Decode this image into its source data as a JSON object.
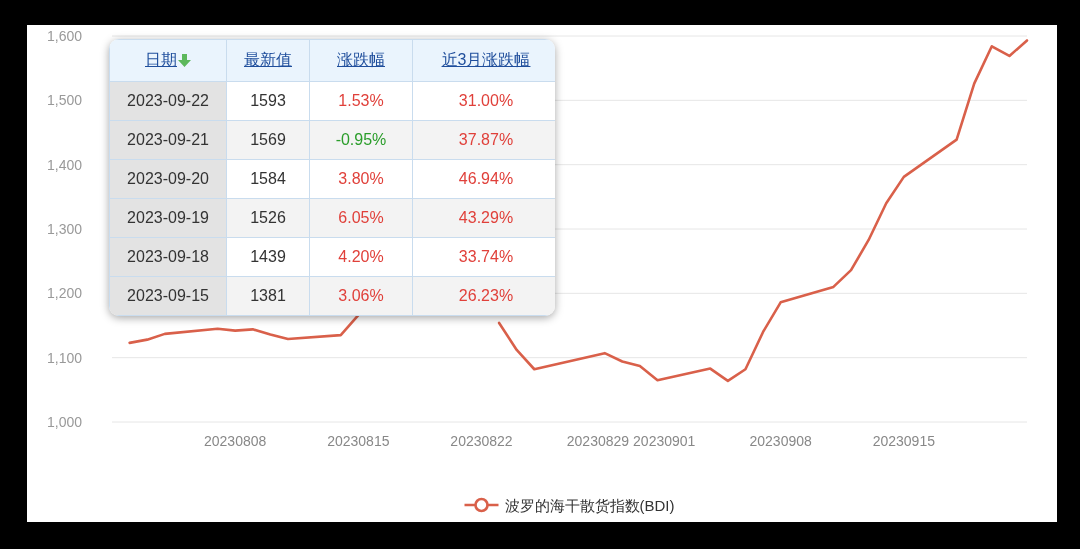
{
  "chart_data": [
    {
      "type": "line",
      "x": [
        "2023-08-02",
        "2023-08-03",
        "2023-08-04",
        "2023-08-07",
        "2023-08-08",
        "2023-08-09",
        "2023-08-10",
        "2023-08-11",
        "2023-08-14",
        "2023-08-15",
        "2023-08-23",
        "2023-08-24",
        "2023-08-25",
        "2023-08-29",
        "2023-08-30",
        "2023-08-31",
        "2023-09-01",
        "2023-09-04",
        "2023-09-05",
        "2023-09-06",
        "2023-09-07",
        "2023-09-08",
        "2023-09-11",
        "2023-09-12",
        "2023-09-13",
        "2023-09-14",
        "2023-09-15",
        "2023-09-18",
        "2023-09-19",
        "2023-09-20",
        "2023-09-21",
        "2023-09-22"
      ],
      "series": [
        {
          "name": "波罗的海干散货指数(BDI)",
          "color": "#d9604a",
          "values": [
            1123,
            1128,
            1137,
            1145,
            1142,
            1144,
            1136,
            1129,
            1135,
            1166,
            1154,
            1112,
            1082,
            1107,
            1094,
            1087,
            1065,
            1083,
            1064,
            1082,
            1140,
            1186,
            1210,
            1236,
            1283,
            1340,
            1381,
            1439,
            1526,
            1584,
            1569,
            1593
          ]
        }
      ],
      "xlim": [
        "2023-08-01",
        "2023-09-22"
      ],
      "xticks": [
        {
          "value": "2023-08-08",
          "label": "20230808"
        },
        {
          "value": "2023-08-15",
          "label": "20230815"
        },
        {
          "value": "2023-08-22",
          "label": "20230822"
        },
        {
          "value": "2023-08-29",
          "label": "20230829"
        },
        {
          "value": "2023-09-01",
          "label": "20230901"
        },
        {
          "value": "2023-09-08",
          "label": "20230908"
        },
        {
          "value": "2023-09-15",
          "label": "20230915"
        }
      ],
      "ylim": [
        1000,
        1600
      ],
      "yticks": [
        {
          "value": 1000,
          "label": "1,000"
        },
        {
          "value": 1100,
          "label": "1,100"
        },
        {
          "value": 1200,
          "label": "1,200"
        },
        {
          "value": 1300,
          "label": "1,300"
        },
        {
          "value": 1400,
          "label": "1,400"
        },
        {
          "value": 1500,
          "label": "1,500"
        },
        {
          "value": 1600,
          "label": "1,600"
        }
      ],
      "grid": "y",
      "legend": "bottom"
    },
    {
      "type": "other",
      "categories": [
        "日期",
        "最新值",
        "涨跌幅",
        "近3月涨跌幅"
      ],
      "cell_labels": [
        [
          "2023-09-22",
          "1593",
          "1.53%",
          "31.00%"
        ],
        [
          "2023-09-21",
          "1569",
          "-0.95%",
          "37.87%"
        ],
        [
          "2023-09-20",
          "1584",
          "3.80%",
          "46.94%"
        ],
        [
          "2023-09-19",
          "1526",
          "6.05%",
          "43.29%"
        ],
        [
          "2023-09-18",
          "1439",
          "4.20%",
          "33.74%"
        ],
        [
          "2023-09-15",
          "1381",
          "3.06%",
          "26.23%"
        ]
      ],
      "colors": [
        [
          "#333333",
          "#333333",
          "#e0403a",
          "#e0403a"
        ],
        [
          "#333333",
          "#333333",
          "#2a9d2a",
          "#e0403a"
        ],
        [
          "#333333",
          "#333333",
          "#e0403a",
          "#e0403a"
        ],
        [
          "#333333",
          "#333333",
          "#e0403a",
          "#e0403a"
        ],
        [
          "#333333",
          "#333333",
          "#e0403a",
          "#e0403a"
        ],
        [
          "#333333",
          "#333333",
          "#e0403a",
          "#e0403a"
        ]
      ]
    }
  ]
}
